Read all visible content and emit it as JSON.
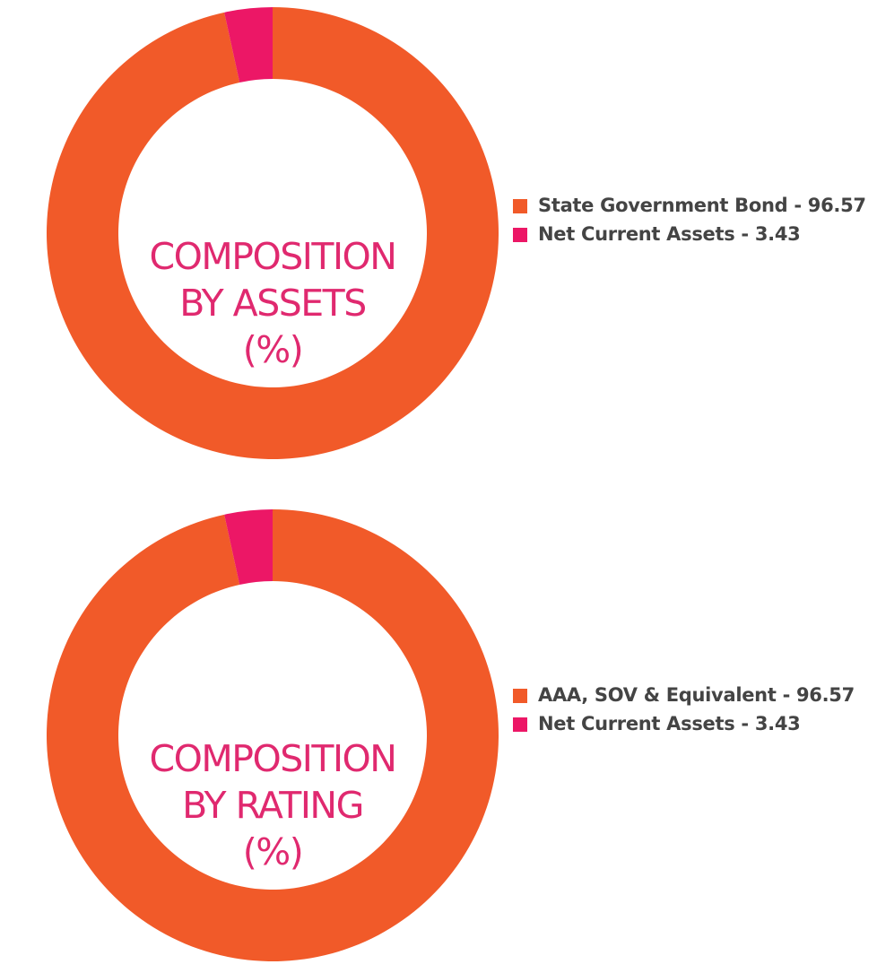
{
  "colors": {
    "orange": "#f15a29",
    "pink": "#ec1766",
    "title_color": "#e0296f",
    "legend_text": "#444444"
  },
  "chart_data": [
    {
      "type": "pie",
      "donut": true,
      "title_lines": [
        "COMPOSITION",
        "BY ASSETS",
        "(%)"
      ],
      "slices": [
        {
          "label": "State Government Bond - 96.57",
          "value": 96.57,
          "color": "#f15a29"
        },
        {
          "label": "Net Current Assets - 3.43",
          "value": 3.43,
          "color": "#ec1766"
        }
      ],
      "legend_placement": "right"
    },
    {
      "type": "pie",
      "donut": true,
      "title_lines": [
        "COMPOSITION",
        "BY RATING",
        "(%)"
      ],
      "slices": [
        {
          "label": "AAA, SOV & Equivalent - 96.57",
          "value": 96.57,
          "color": "#f15a29"
        },
        {
          "label": "Net Current Assets - 3.43",
          "value": 3.43,
          "color": "#ec1766"
        }
      ],
      "legend_placement": "right"
    }
  ]
}
